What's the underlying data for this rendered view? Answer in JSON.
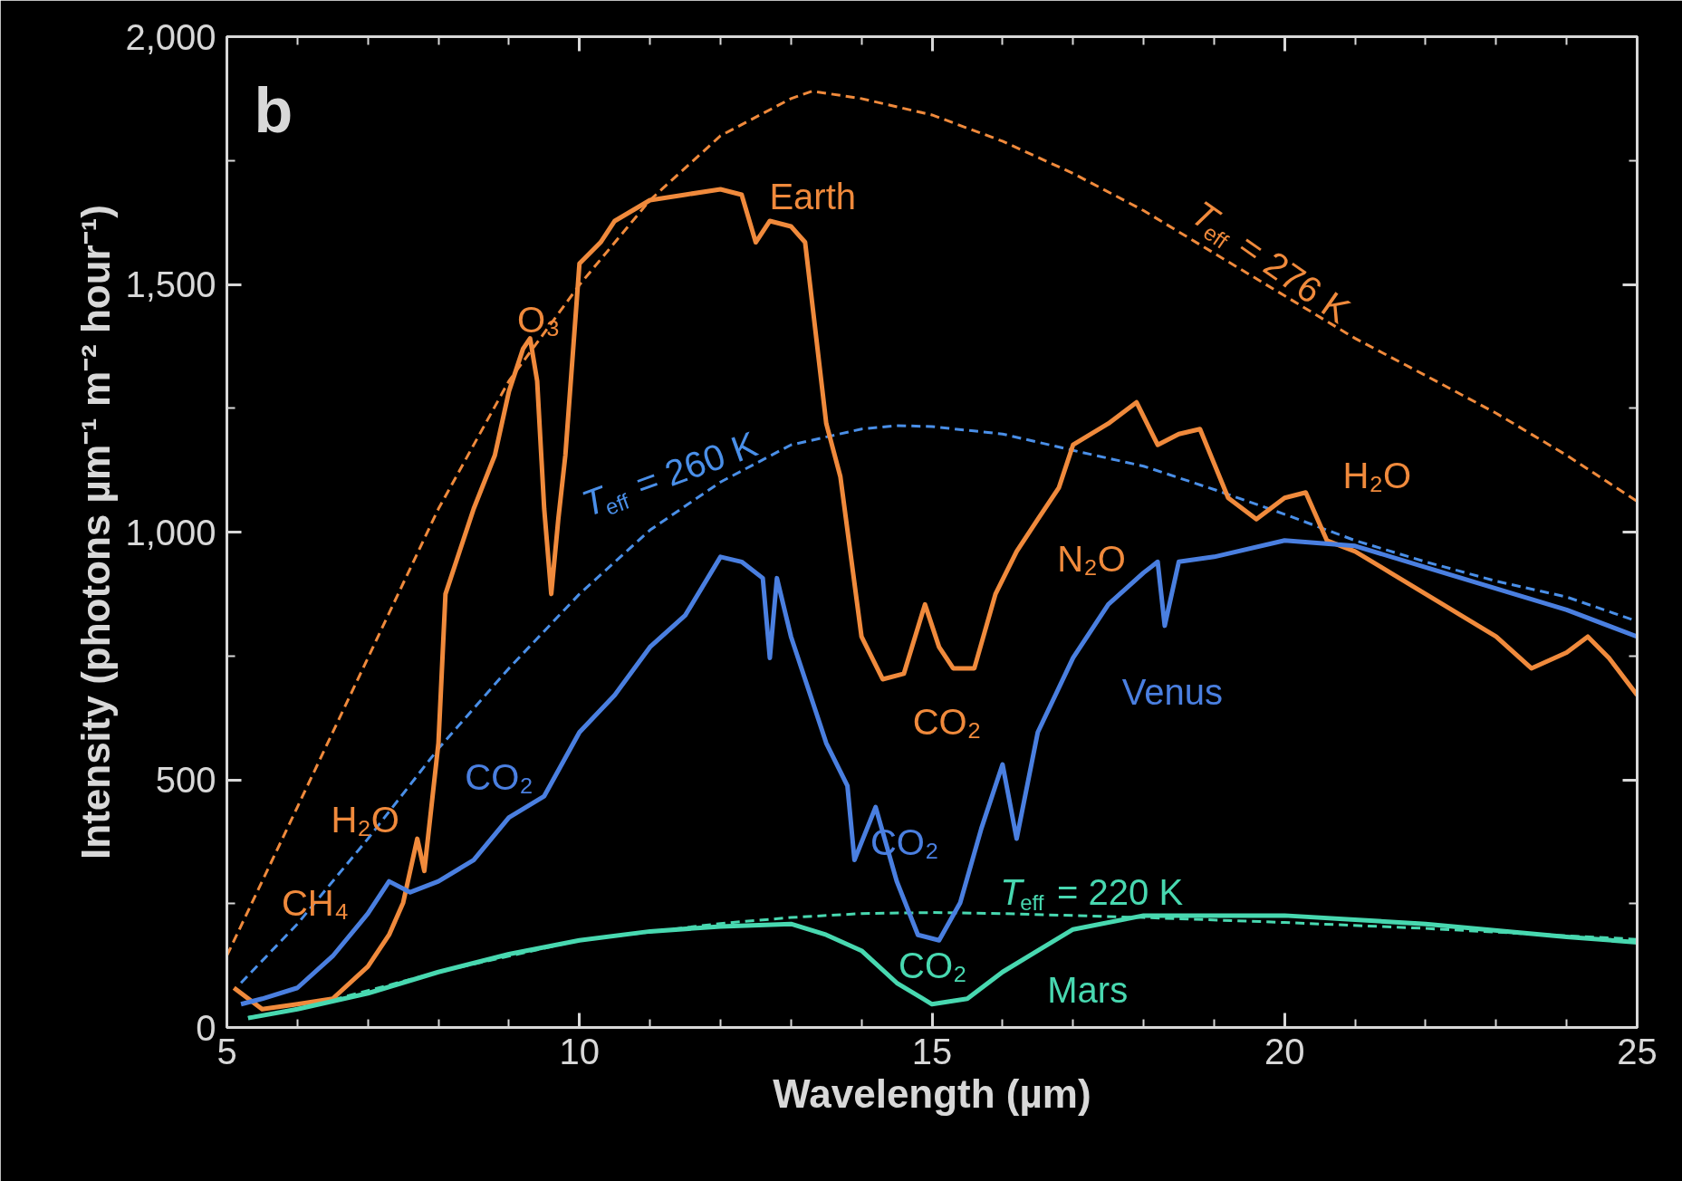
{
  "chart_data": {
    "type": "line",
    "xlabel": "Wavelength (µm)",
    "ylabel": "Intensity (photons µm⁻¹ m⁻² hour⁻¹)",
    "xlim": [
      5,
      25
    ],
    "ylim": [
      0,
      2000
    ],
    "xticks": [
      5,
      10,
      15,
      20,
      25,
      {
        "value": 6,
        "label": null
      },
      {
        "value": 7,
        "label": null
      },
      {
        "value": 8,
        "label": null
      },
      {
        "value": 9,
        "label": null
      },
      {
        "value": 11,
        "label": null
      },
      {
        "value": 12,
        "label": null
      },
      {
        "value": 13,
        "label": null
      },
      {
        "value": 14,
        "label": null
      },
      {
        "value": 16,
        "label": null
      },
      {
        "value": 17,
        "label": null
      },
      {
        "value": 18,
        "label": null
      },
      {
        "value": 19,
        "label": null
      },
      {
        "value": 21,
        "label": null
      },
      {
        "value": 22,
        "label": null
      },
      {
        "value": 23,
        "label": null
      },
      {
        "value": 24,
        "label": null
      }
    ],
    "yticks": [
      0,
      500,
      {
        "value": 1000,
        "label": "1,000"
      },
      {
        "value": 1500,
        "label": "1,500"
      },
      {
        "value": 2000,
        "label": "2,000"
      },
      {
        "value": 250,
        "label": null
      },
      {
        "value": 750,
        "label": null
      },
      {
        "value": 1250,
        "label": null
      },
      {
        "value": 1750,
        "label": null
      }
    ],
    "grid": false,
    "series": [
      {
        "color": "#f08a3c",
        "line_style": "dashed",
        "x": [
          5,
          6,
          7,
          8,
          9,
          10,
          11,
          12,
          13,
          13.3,
          14,
          15,
          16,
          17,
          18,
          19,
          20,
          21,
          22,
          23,
          24,
          25
        ],
        "values": [
          145,
          445,
          746,
          1047,
          1305,
          1499,
          1670,
          1800,
          1875,
          1890,
          1875,
          1842,
          1789,
          1724,
          1649,
          1563,
          1477,
          1391,
          1316,
          1240,
          1155,
          1062
        ]
      },
      {
        "color": "#4a8fe8",
        "line_style": "dashed",
        "x": [
          5.2,
          6,
          7,
          8,
          9,
          10,
          11,
          12,
          13,
          14,
          14.5,
          15,
          16,
          17,
          18,
          19,
          20,
          21,
          22,
          23,
          24,
          25
        ],
        "values": [
          90,
          209,
          381,
          563,
          725,
          875,
          1004,
          1101,
          1176,
          1208,
          1215,
          1213,
          1198,
          1165,
          1133,
          1086,
          1036,
          983,
          940,
          901,
          869,
          820
        ]
      },
      {
        "color": "#48d8b0",
        "line_style": "dashed",
        "x": [
          5.3,
          6,
          8,
          10,
          12,
          13,
          14,
          15,
          16,
          17,
          18,
          20,
          22,
          24,
          25
        ],
        "values": [
          20,
          37,
          112,
          176,
          210,
          222,
          230,
          232,
          230,
          226,
          222,
          212,
          200,
          185,
          178
        ]
      },
      {
        "color": "#f08a3c",
        "line_style": "solid",
        "x": [
          5.1,
          5.5,
          6,
          6.5,
          7,
          7.3,
          7.5,
          7.7,
          7.8,
          8.0,
          8.1,
          8.3,
          8.5,
          8.8,
          9.0,
          9.2,
          9.3,
          9.4,
          9.5,
          9.6,
          9.7,
          9.8,
          10.0,
          10.3,
          10.5,
          11,
          11.5,
          12,
          12.3,
          12.5,
          12.7,
          13,
          13.2,
          13.5,
          13.7,
          14,
          14.3,
          14.6,
          14.9,
          15.1,
          15.3,
          15.6,
          15.9,
          16.2,
          16.5,
          16.8,
          17,
          17.5,
          17.9,
          18.2,
          18.5,
          18.8,
          19.2,
          19.6,
          20,
          20.3,
          20.6,
          21,
          21.5,
          22,
          22.5,
          23,
          23.5,
          24,
          24.3,
          24.6,
          25
        ],
        "values": [
          80,
          37,
          47,
          58,
          123,
          187,
          252,
          381,
          316,
          574,
          875,
          961,
          1047,
          1155,
          1284,
          1370,
          1391,
          1305,
          1047,
          875,
          1026,
          1155,
          1542,
          1585,
          1628,
          1670,
          1681,
          1692,
          1681,
          1585,
          1628,
          1617,
          1585,
          1219,
          1112,
          789,
          703,
          714,
          854,
          768,
          725,
          725,
          875,
          961,
          1026,
          1090,
          1176,
          1219,
          1262,
          1176,
          1198,
          1208,
          1069,
          1026,
          1069,
          1080,
          983,
          961,
          918,
          875,
          832,
          789,
          725,
          757,
          789,
          746,
          671
        ]
      },
      {
        "color": "#4a7fe0",
        "line_style": "solid",
        "x": [
          5.2,
          5.5,
          6,
          6.5,
          7,
          7.3,
          7.6,
          8,
          8.5,
          9,
          9.5,
          10,
          10.5,
          11,
          11.5,
          12,
          12.3,
          12.6,
          12.7,
          12.8,
          13,
          13.5,
          13.8,
          13.9,
          14.2,
          14.5,
          14.8,
          15.1,
          15.4,
          15.7,
          16,
          16.2,
          16.5,
          17,
          17.5,
          18,
          18.2,
          18.3,
          18.5,
          19,
          20,
          21,
          22,
          23,
          24,
          25
        ],
        "values": [
          47,
          58,
          80,
          144,
          230,
          295,
          273,
          295,
          338,
          424,
          467,
          596,
          671,
          768,
          832,
          950,
          940,
          907,
          746,
          907,
          789,
          574,
          488,
          338,
          445,
          295,
          187,
          176,
          252,
          402,
          531,
          381,
          596,
          746,
          854,
          918,
          940,
          811,
          940,
          950,
          983,
          972,
          929,
          886,
          843,
          789
        ]
      },
      {
        "color": "#48d8b0",
        "line_style": "solid",
        "x": [
          5.3,
          6,
          7,
          8,
          9,
          10,
          11,
          12,
          13,
          13.5,
          14,
          14.5,
          15,
          15.5,
          16,
          16.5,
          17,
          18,
          20,
          22,
          24,
          25
        ],
        "values": [
          19,
          37,
          69,
          112,
          148,
          176,
          194,
          204,
          209,
          187,
          155,
          90,
          47,
          58,
          112,
          155,
          198,
          226,
          226,
          209,
          183,
          172
        ]
      }
    ],
    "annotations": [
      "b",
      "Earth",
      "O₃",
      "H₂O",
      "N₂O",
      "CO₂",
      "H₂O",
      "CH₄",
      "Venus",
      "CO₂",
      "CO₂",
      "Mars",
      "CO₂",
      "T$_{eff}$ = 276 K",
      "T$_{eff}$ = 260 K",
      "T$_{eff}$ = 220 K"
    ]
  }
}
